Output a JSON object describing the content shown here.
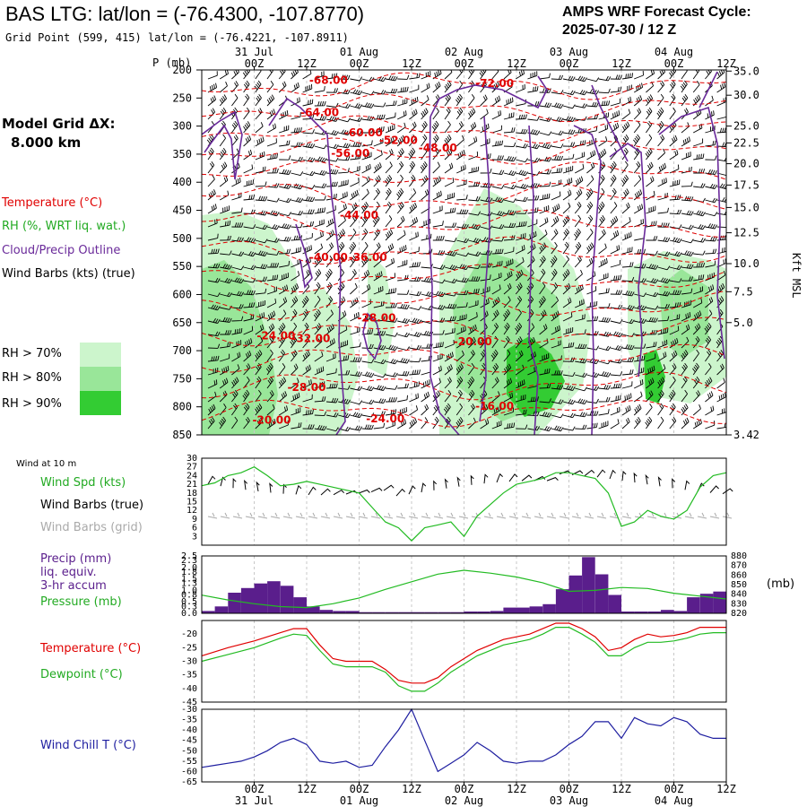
{
  "header": {
    "title": "BAS LTG:  lat/lon = (-76.4300, -107.8770)",
    "subtitle": "Grid Point (599, 415) lat/lon = (-76.4221, -107.8911)",
    "cycle_label": "AMPS WRF Forecast Cycle:",
    "cycle_value": "2025-07-30 / 12  Z"
  },
  "grid_label": "Model Grid ΔX:",
  "grid_value": "8.000 km",
  "time_axis": {
    "ticks": [
      "00Z",
      "12Z",
      "00Z",
      "12Z",
      "00Z",
      "12Z",
      "00Z",
      "12Z",
      "00Z",
      "12Z"
    ],
    "hours": [
      12,
      24,
      36,
      48,
      60,
      72,
      84,
      96,
      108,
      120
    ],
    "dates": [
      "31 Jul",
      "01 Aug",
      "02 Aug",
      "03 Aug",
      "04 Aug"
    ],
    "date_hours": [
      12,
      36,
      60,
      84,
      108
    ],
    "p_unit": "P (mb)"
  },
  "legend": {
    "temperature": "Temperature (°C)",
    "rh": "RH (%, WRT liq. wat.)",
    "cloud": "Cloud/Precip Outline",
    "barbs": "Wind Barbs (kts) (true)",
    "rh70": "RH > 70%",
    "rh80": "RH > 80%",
    "rh90": "RH > 90%",
    "rh70_color": "#ccf5cc",
    "rh80_color": "#99e699",
    "rh90_color": "#33cc33"
  },
  "panel_labels": {
    "wind10": "Wind at 10 m",
    "wind_spd": "Wind Spd (kts)",
    "wind_true": "Wind Barbs (true)",
    "wind_grid": "Wind Barbs (grid)",
    "precip1": "Precip (mm)",
    "precip2": "liq. equiv.",
    "precip3": "3-hr accum",
    "pressure": "Pressure (mb)",
    "pressure_unit": "(mb)",
    "temp": "Temperature (°C)",
    "dew": "Dewpoint (°C)",
    "chill": "Wind Chill T (°C)",
    "kft": "Kft MSL"
  },
  "chart_data": [
    {
      "type": "heatmap",
      "name": "vertical-cross-section",
      "x_unit": "forecast hour",
      "xlim": [
        0,
        120
      ],
      "ylim_mb": [
        850,
        200
      ],
      "pressure_ticks": [
        200,
        250,
        300,
        350,
        400,
        450,
        500,
        550,
        600,
        650,
        700,
        750,
        800,
        850
      ],
      "kft_ticks": [
        {
          "label": "35.0",
          "p": 202
        },
        {
          "label": "30.0",
          "p": 245
        },
        {
          "label": "25.0",
          "p": 300
        },
        {
          "label": "22.5",
          "p": 330
        },
        {
          "label": "20.0",
          "p": 367
        },
        {
          "label": "17.5",
          "p": 405
        },
        {
          "label": "15.0",
          "p": 445
        },
        {
          "label": "12.5",
          "p": 490
        },
        {
          "label": "10.0",
          "p": 545
        },
        {
          "label": "7.5",
          "p": 595
        },
        {
          "label": "5.0",
          "p": 650
        },
        {
          "label": "3.42",
          "p": 690
        }
      ],
      "temperature_labels": [
        {
          "text": "-68.00",
          "t": 29,
          "p": 225
        },
        {
          "text": "-72.00",
          "t": 67,
          "p": 230
        },
        {
          "text": "-64.00",
          "t": 27,
          "p": 282
        },
        {
          "text": "-60.00",
          "t": 37,
          "p": 318
        },
        {
          "text": "-52.00",
          "t": 45,
          "p": 332
        },
        {
          "text": "-48.00",
          "t": 54,
          "p": 345
        },
        {
          "text": "-56.00",
          "t": 34,
          "p": 355
        },
        {
          "text": "-44.00",
          "t": 36,
          "p": 465
        },
        {
          "text": "-40.00",
          "t": 29,
          "p": 540
        },
        {
          "text": "-36.00",
          "t": 38,
          "p": 540
        },
        {
          "text": "-28.00",
          "t": 40,
          "p": 648
        },
        {
          "text": "-24.00",
          "t": 17,
          "p": 680
        },
        {
          "text": "-32.00",
          "t": 25,
          "p": 685
        },
        {
          "text": "-20.00",
          "t": 62,
          "p": 690
        },
        {
          "text": "-28.00",
          "t": 24,
          "p": 772
        },
        {
          "text": "-16.00",
          "t": 67,
          "p": 805
        },
        {
          "text": "-20.00",
          "t": 16,
          "p": 830
        },
        {
          "text": "-24.00",
          "t": 42,
          "p": 828
        }
      ]
    },
    {
      "type": "line",
      "name": "wind-10m",
      "ylim": [
        0,
        30
      ],
      "yticks": [
        3,
        6,
        9,
        12,
        15,
        18,
        21,
        24,
        27,
        30
      ],
      "series": [
        {
          "name": "Wind Spd (kts)",
          "color": "#22bb22",
          "x": [
            0,
            3,
            6,
            9,
            12,
            15,
            18,
            21,
            24,
            27,
            30,
            33,
            36,
            39,
            42,
            45,
            48,
            51,
            54,
            57,
            60,
            63,
            66,
            69,
            72,
            75,
            78,
            81,
            84,
            87,
            90,
            93,
            96,
            99,
            102,
            105,
            108,
            111,
            114,
            117,
            120
          ],
          "y": [
            20.5,
            21.5,
            24,
            25,
            27,
            24,
            20.5,
            21,
            22,
            21,
            20,
            19,
            18,
            13,
            8,
            6,
            1.5,
            6,
            7,
            8,
            3,
            10,
            14,
            18,
            21,
            22,
            23,
            25,
            25,
            24,
            23,
            18,
            6.5,
            8,
            12,
            10,
            9,
            12,
            20,
            24,
            25
          ]
        }
      ]
    },
    {
      "type": "bar",
      "name": "precip-pressure",
      "ylim": [
        0,
        2.5
      ],
      "yticks": [
        0,
        0.3,
        0.5,
        0.8,
        1.0,
        1.3,
        1.5,
        1.8,
        2.0,
        2.3,
        2.5
      ],
      "ytick_labels": [
        "0.0",
        "0.3",
        "0.5",
        "0.8",
        "1.0",
        "1.3",
        "1.5",
        "1.8",
        "2.0",
        "2.3",
        "2.5"
      ],
      "y2lim": [
        820,
        880
      ],
      "y2ticks": [
        820,
        830,
        840,
        850,
        860,
        870,
        880
      ],
      "x": [
        0,
        3,
        6,
        9,
        12,
        15,
        18,
        21,
        24,
        27,
        30,
        33,
        36,
        39,
        42,
        45,
        48,
        51,
        54,
        57,
        60,
        63,
        66,
        69,
        72,
        75,
        78,
        81,
        84,
        87,
        90,
        93,
        96,
        99,
        102,
        105,
        108,
        111,
        114,
        117
      ],
      "values": [
        0.1,
        0.3,
        0.9,
        1.1,
        1.3,
        1.4,
        1.2,
        0.7,
        0.3,
        0.15,
        0.1,
        0.1,
        0.05,
        0.05,
        0.05,
        0.05,
        0.05,
        0.05,
        0.05,
        0.05,
        0.08,
        0.08,
        0.1,
        0.25,
        0.25,
        0.3,
        0.4,
        1.05,
        1.65,
        2.45,
        1.7,
        0.8,
        0.08,
        0.08,
        0.08,
        0.15,
        0.1,
        0.7,
        0.85,
        0.95
      ],
      "bar_color": "#5a1e8c",
      "pressure": {
        "name": "Pressure (mb)",
        "color": "#22bb22",
        "x": [
          0,
          6,
          12,
          18,
          24,
          30,
          36,
          42,
          48,
          54,
          60,
          66,
          72,
          78,
          84,
          90,
          96,
          102,
          108,
          114,
          120
        ],
        "y": [
          839,
          834,
          830,
          827,
          826,
          830,
          836,
          845,
          853,
          861,
          865,
          862,
          858,
          852,
          843,
          844,
          847,
          846,
          841,
          838,
          835
        ]
      }
    },
    {
      "type": "line",
      "name": "temperature-dewpoint",
      "ylim": [
        -45,
        -15
      ],
      "yticks": [
        -45,
        -40,
        -35,
        -30,
        -25,
        -20
      ],
      "x": [
        0,
        6,
        12,
        18,
        21,
        24,
        27,
        30,
        33,
        36,
        39,
        42,
        45,
        48,
        51,
        54,
        57,
        60,
        63,
        66,
        69,
        72,
        75,
        78,
        81,
        84,
        87,
        90,
        93,
        96,
        99,
        102,
        105,
        108,
        111,
        114,
        117,
        120
      ],
      "series": [
        {
          "name": "Temperature (°C)",
          "color": "#e00000",
          "y": [
            -28,
            -25,
            -22.5,
            -19.5,
            -18,
            -18,
            -24,
            -29,
            -30,
            -30,
            -30,
            -33,
            -37,
            -38,
            -38,
            -36,
            -32,
            -29,
            -26,
            -24,
            -22,
            -21,
            -20,
            -18,
            -16,
            -16,
            -18,
            -21,
            -26,
            -25,
            -22,
            -20,
            -21,
            -20.5,
            -19.5,
            -17.5,
            -17.5,
            -17.5
          ]
        },
        {
          "name": "Dewpoint (°C)",
          "color": "#22bb22",
          "y": [
            -30,
            -27.5,
            -25,
            -21.5,
            -20,
            -20.5,
            -26,
            -31,
            -32,
            -32,
            -32,
            -34,
            -39,
            -41,
            -41,
            -38,
            -34,
            -31,
            -28,
            -26,
            -24,
            -23,
            -22,
            -20,
            -17.5,
            -17.5,
            -20,
            -23,
            -28,
            -28,
            -25,
            -23,
            -23,
            -22.5,
            -21.5,
            -20,
            -19.5,
            -19.5
          ]
        }
      ]
    },
    {
      "type": "line",
      "name": "wind-chill",
      "ylim": [
        -65,
        -30
      ],
      "yticks": [
        -65,
        -60,
        -55,
        -50,
        -45,
        -40,
        -35,
        -30
      ],
      "series": [
        {
          "name": "Wind Chill T (°C)",
          "color": "#1e1ea0",
          "x": [
            0,
            3,
            6,
            9,
            12,
            15,
            18,
            21,
            24,
            27,
            30,
            33,
            36,
            39,
            42,
            45,
            48,
            51,
            54,
            57,
            60,
            63,
            66,
            69,
            72,
            75,
            78,
            81,
            84,
            87,
            90,
            93,
            96,
            99,
            102,
            105,
            108,
            111,
            114,
            117,
            120
          ],
          "y": [
            -58,
            -57,
            -56,
            -55,
            -53,
            -50,
            -46,
            -44,
            -47,
            -55,
            -56,
            -55,
            -58,
            -57,
            -48,
            -40,
            -30,
            -45,
            -60,
            -56,
            -52,
            -46,
            -50,
            -55,
            -56,
            -55,
            -55,
            -52,
            -47,
            -43,
            -36,
            -36,
            -44,
            -34,
            -37,
            -38,
            -34,
            -36,
            -42,
            -44,
            -44
          ]
        }
      ]
    }
  ]
}
